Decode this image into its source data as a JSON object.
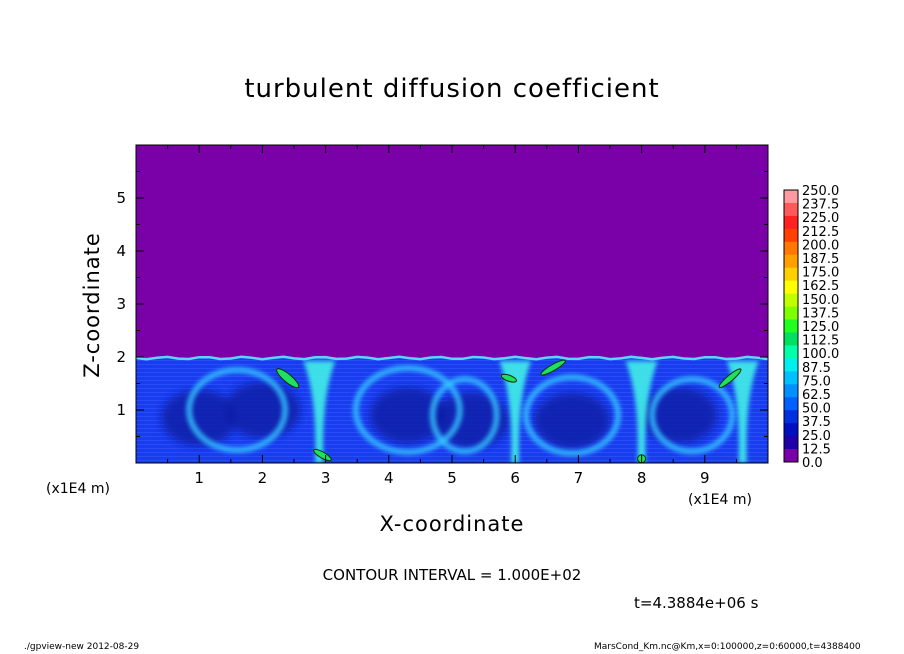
{
  "chart_data": {
    "type": "heatmap",
    "title": "turbulent diffusion coefficient",
    "xlabel": "X-coordinate",
    "ylabel": "Z-coordinate",
    "x_unit": "(x1E4 m)",
    "xlim": [
      0,
      10
    ],
    "ylim": [
      0,
      6
    ],
    "x_ticks": [
      "1",
      "2",
      "3",
      "4",
      "5",
      "6",
      "7",
      "8",
      "9"
    ],
    "y_ticks": [
      "1",
      "2",
      "3",
      "4",
      "5"
    ],
    "colorbar_levels": [
      "250.0",
      "237.5",
      "225.0",
      "212.5",
      "200.0",
      "187.5",
      "175.0",
      "162.5",
      "150.0",
      "137.5",
      "125.0",
      "112.5",
      "100.0",
      "87.5",
      "75.0",
      "62.5",
      "50.0",
      "37.5",
      "25.0",
      "12.5",
      "0.0"
    ],
    "colorbar_colors": [
      "#ff9aa0",
      "#ff5a5a",
      "#ff2020",
      "#ff4000",
      "#ff7800",
      "#ffa000",
      "#ffd000",
      "#ffff00",
      "#c0ff00",
      "#80ff00",
      "#20ff20",
      "#00e060",
      "#00ffa8",
      "#00f0f0",
      "#00c0ff",
      "#0090ff",
      "#0060ff",
      "#0030e0",
      "#0010c0",
      "#2000a8",
      "#7a00a8"
    ],
    "background_color": "#7a00a8",
    "boundary_layer_top": 2.0,
    "updraft_x": [
      2.9,
      6.0,
      8.0,
      9.6
    ],
    "contour_interval": "CONTOUR INTERVAL = 1.000E+02",
    "time": "t=4.3884e+06 s"
  },
  "footer": {
    "left": "./gpview-new  2012-08-29",
    "right": "MarsCond_Km.nc@Km,x=0:100000,z=0:60000,t=4388400"
  }
}
